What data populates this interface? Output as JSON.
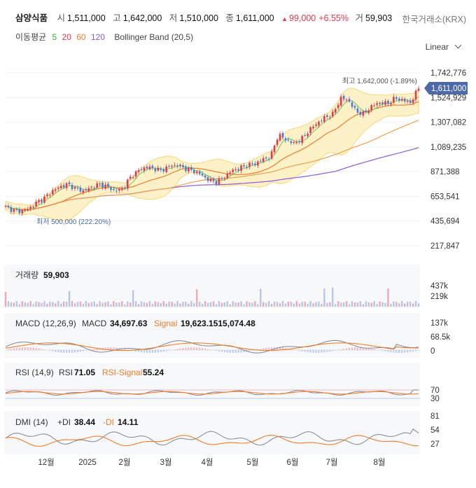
{
  "header": {
    "name": "삼양식품",
    "open_label": "시",
    "open": "1,511,000",
    "high_label": "고",
    "high": "1,642,000",
    "low_label": "저",
    "low": "1,510,000",
    "close_label": "종",
    "close": "1,611,000",
    "change": "99,000",
    "change_pct": "+6.55%",
    "volume_label": "거",
    "volume": "59,903",
    "exchange": "한국거래소(KRX)"
  },
  "indicators_line": {
    "ma_label": "이동평균",
    "ma5": "5",
    "ma20": "20",
    "ma60": "60",
    "ma120": "120",
    "bb_label": "Bollinger Band (20,5)"
  },
  "scale_mode": "Linear",
  "colors": {
    "up": "#e5384b",
    "down": "#4a7bd0",
    "ma5": "#34b233",
    "ma20": "#ef7d2d",
    "ma60": "#f0a050",
    "ma120": "#8b5cd6",
    "band": "#fdf1c8",
    "band_line": "#f6d77a",
    "price_tag": "#4d6aa8"
  },
  "chart_data": [
    {
      "type": "candlestick",
      "pane": "price",
      "x_ticks": [
        "12월",
        "2025",
        "2월",
        "3월",
        "4월",
        "5월",
        "6월",
        "7월",
        "8월"
      ],
      "y_ticks": [
        "1,742,776",
        "1,524,929",
        "1,307,082",
        "1,089,235",
        "871,388",
        "653,541",
        "435,694",
        "217,847"
      ],
      "ylim": [
        217847,
        1742776
      ],
      "last_price": "1,611,000",
      "high_annotation": "최고 1,642,000 (-1.89%)",
      "low_annotation": "최저 500,000 (222.20%)",
      "close_series_approx": [
        560000,
        530000,
        520000,
        545000,
        600000,
        640000,
        700000,
        740000,
        760000,
        720000,
        700000,
        730000,
        760000,
        740000,
        700000,
        720000,
        820000,
        880000,
        910000,
        900000,
        880000,
        920000,
        930000,
        900000,
        880000,
        850000,
        800000,
        780000,
        820000,
        880000,
        900000,
        930000,
        940000,
        980000,
        1000000,
        1200000,
        1150000,
        1120000,
        1160000,
        1240000,
        1300000,
        1350000,
        1380000,
        1520000,
        1500000,
        1400000,
        1380000,
        1450000,
        1480000,
        1470000,
        1520000,
        1500000,
        1480000,
        1611000
      ]
    },
    {
      "type": "bar",
      "pane": "volume",
      "title_label": "거래량",
      "title_value": "59,903",
      "y_ticks": [
        "437k",
        "219k"
      ]
    },
    {
      "type": "line",
      "pane": "macd",
      "title": "MACD (12,26,9)",
      "macd_label": "MACD",
      "macd_value": "34,697.63",
      "signal_label": "Signal",
      "signal_value": "19,623.1515,074.48",
      "y_ticks": [
        "137k",
        "68.5k",
        "0"
      ]
    },
    {
      "type": "line",
      "pane": "rsi",
      "title": "RSI (14,9)",
      "rsi_label": "RSI",
      "rsi_value": "71.05",
      "signal_label": "RSI-Signal",
      "signal_value": "55.24",
      "y_ticks": [
        "70",
        "30"
      ]
    },
    {
      "type": "line",
      "pane": "dmi",
      "title": "DMI (14)",
      "pdi_label": "+DI",
      "pdi_value": "38.44",
      "mdi_label": "-DI",
      "mdi_value": "14.11",
      "y_ticks": [
        "81",
        "54",
        "27"
      ]
    }
  ]
}
